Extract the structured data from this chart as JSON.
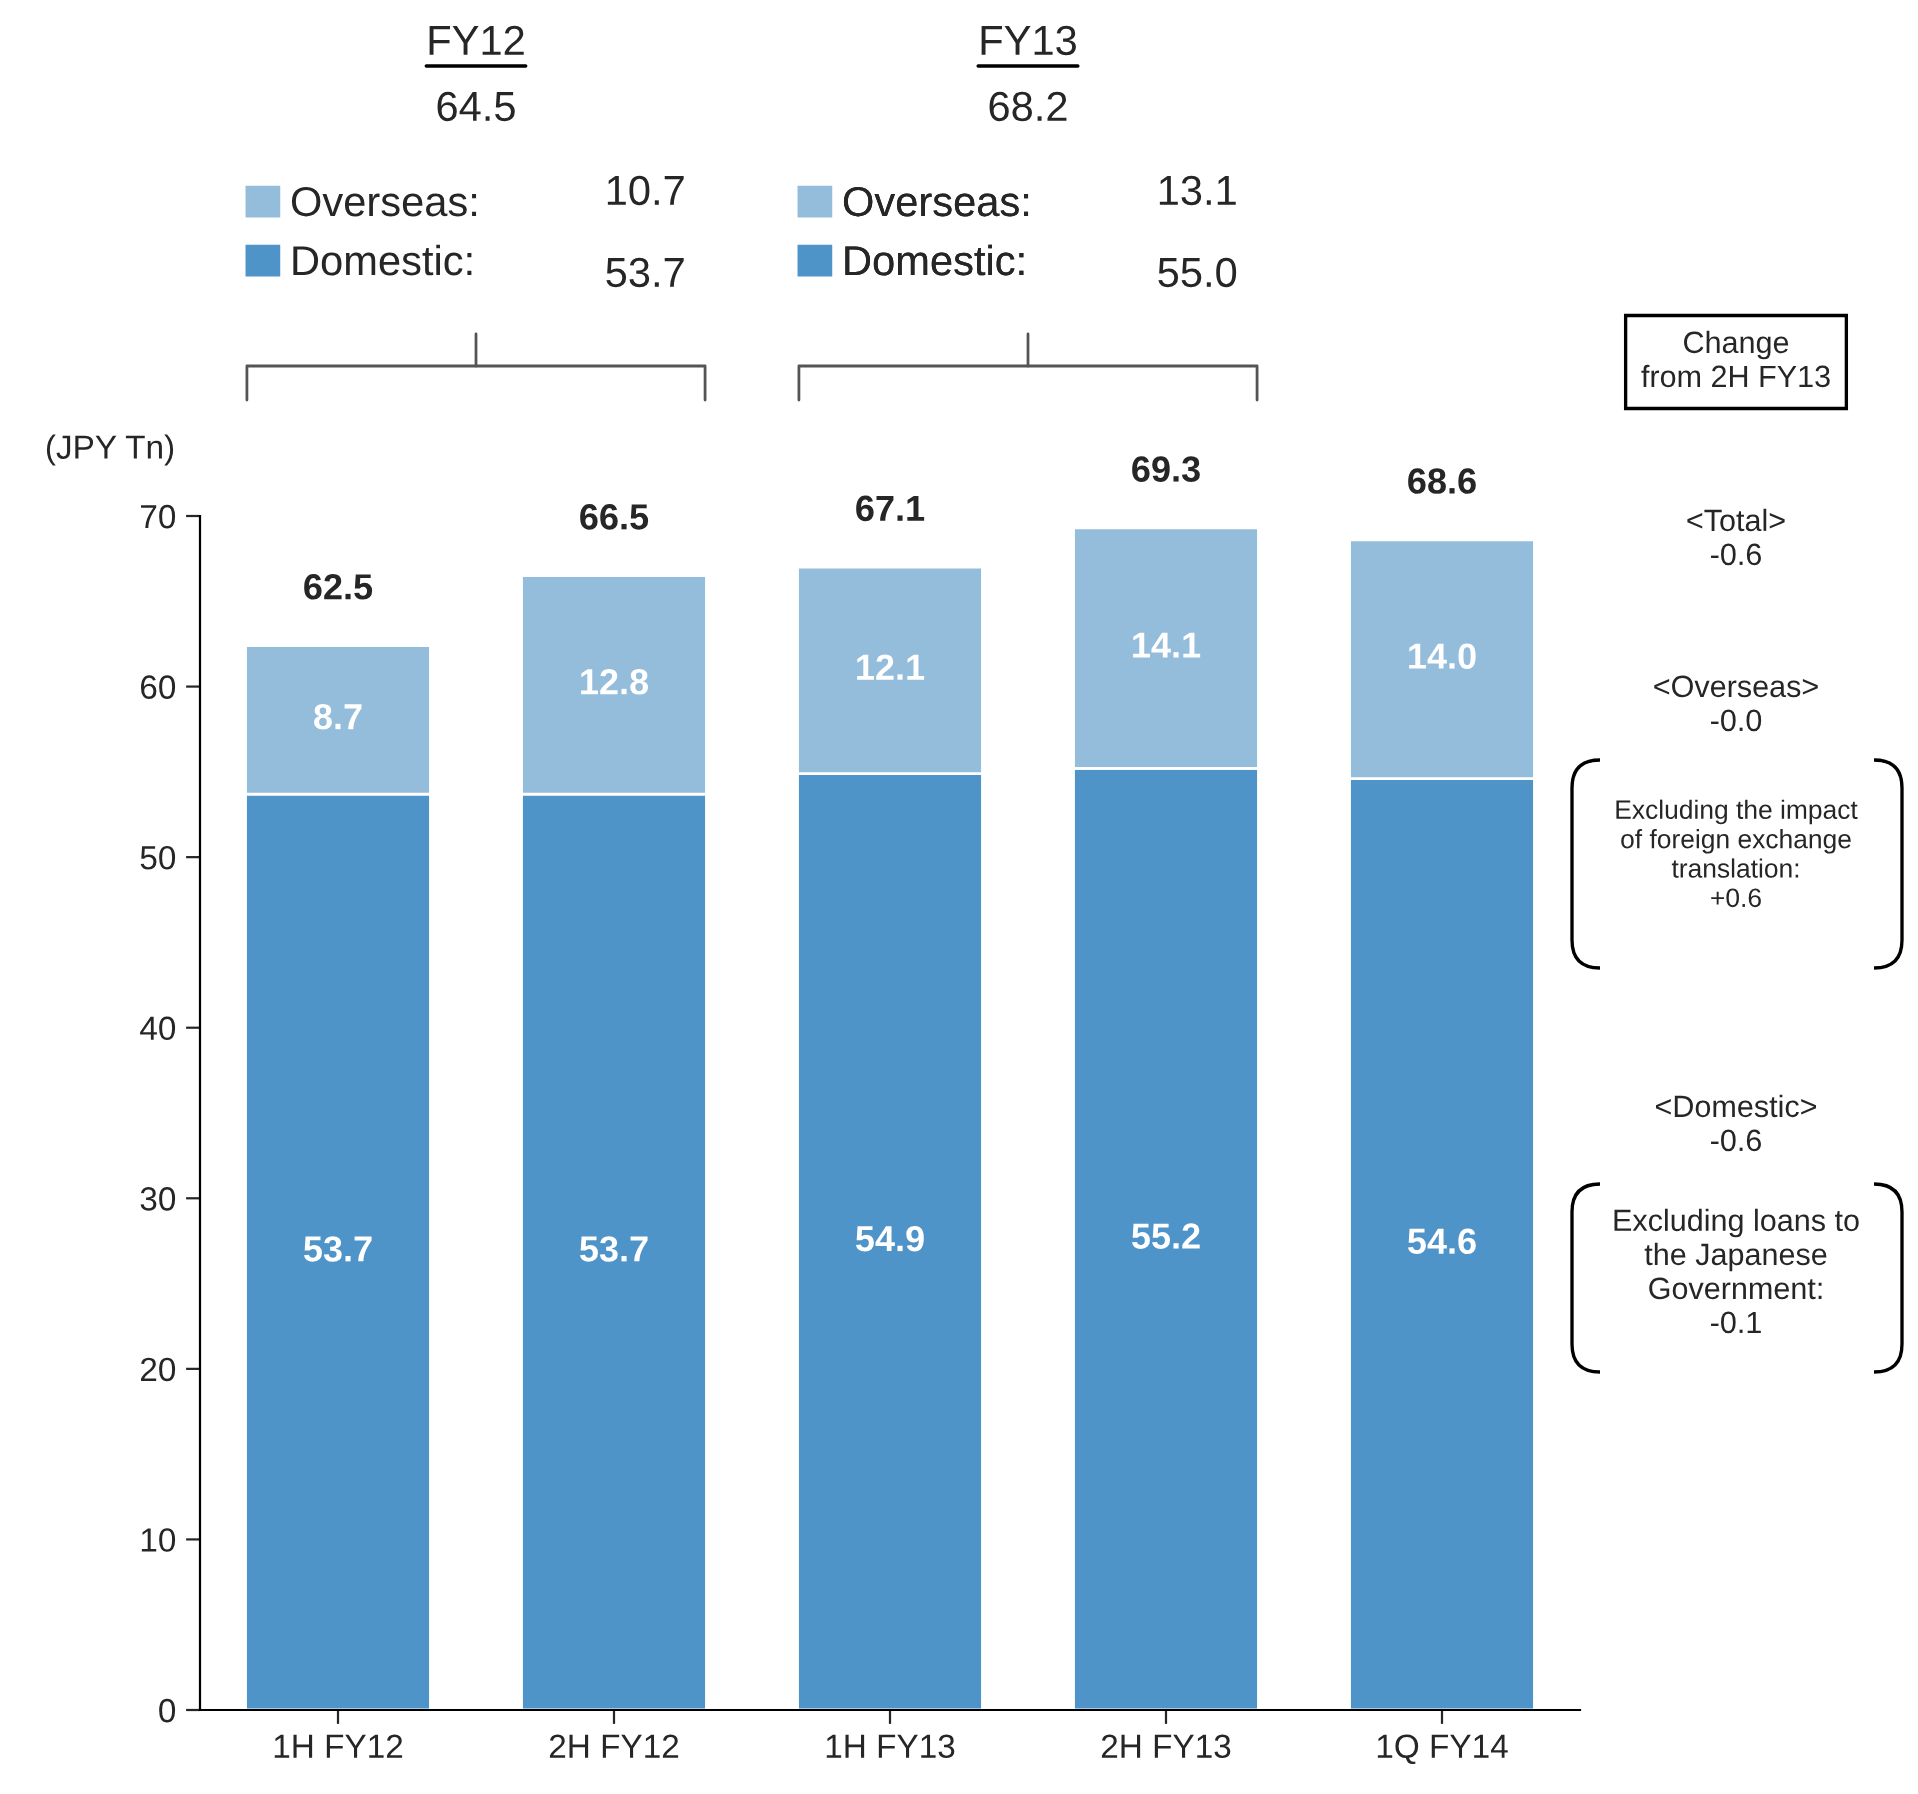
{
  "chart_data": {
    "type": "bar",
    "stacked": true,
    "ylabel": "(JPY Tn)",
    "categories": [
      "1H FY12",
      "2H FY12",
      "1H FY13",
      "2H FY13",
      "1Q FY14"
    ],
    "series": [
      {
        "name": "Domestic:",
        "color": "#4f94c8",
        "values": [
          53.7,
          53.7,
          54.9,
          55.2,
          54.6
        ],
        "value_labels": [
          "53.7",
          "53.7",
          "54.9",
          "55.2",
          "54.6"
        ]
      },
      {
        "name": "Overseas:",
        "color": "#94bcdb",
        "values": [
          8.7,
          12.8,
          12.1,
          14.1,
          14.0
        ],
        "value_labels": [
          "8.7",
          "12.8",
          "12.1",
          "14.1",
          "14.0"
        ]
      }
    ],
    "totals": [
      "62.5",
      "66.5",
      "67.1",
      "69.3",
      "68.6"
    ],
    "ylim": [
      0,
      70
    ],
    "yticks": [
      0,
      10,
      20,
      30,
      40,
      50,
      60,
      70
    ],
    "grid": false,
    "legend": "top",
    "annotations": [
      "FY12",
      "64.5",
      "10.7",
      "53.7",
      "FY13",
      "68.2",
      "13.1",
      "55.0",
      "Change\nfrom 2H FY13",
      "<Total>\n-0.6",
      "<Overseas>\n-0.0",
      "Excluding the impact\nof foreign exchange\ntranslation:\n+0.6",
      "<Domestic>\n-0.6",
      "Excluding loans to\nthe Japanese\nGovernment:\n-0.1"
    ]
  }
}
